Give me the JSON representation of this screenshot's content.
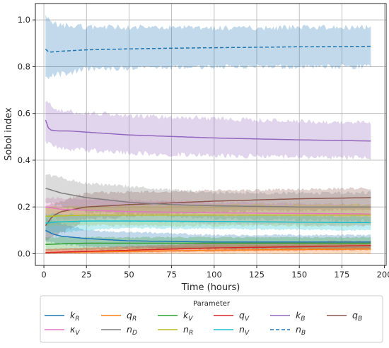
{
  "chart_data": {
    "type": "line",
    "title": "",
    "xlabel": "Time (hours)",
    "ylabel": "Sobol index",
    "xlim": [
      -5,
      201
    ],
    "ylim": [
      -0.05,
      1.07
    ],
    "xticks": [
      0,
      25,
      50,
      75,
      100,
      125,
      150,
      175,
      200
    ],
    "yticks": [
      0.0,
      0.2,
      0.4,
      0.6,
      0.8,
      1.0
    ],
    "ytick_labels": [
      "0.0",
      "0.2",
      "0.4",
      "0.6",
      "0.8",
      "1.0"
    ],
    "grid": true,
    "legend": {
      "title": "Parameter",
      "placement": "bottom",
      "ncol": 6
    },
    "x_range": [
      1,
      192
    ],
    "series": [
      {
        "name": "k_R",
        "label_main": "k",
        "label_sub": "R",
        "color": "#1f77b4",
        "dash": "solid",
        "points": [
          [
            1,
            0.1
          ],
          [
            5,
            0.085
          ],
          [
            10,
            0.075
          ],
          [
            25,
            0.065
          ],
          [
            50,
            0.055
          ],
          [
            100,
            0.05
          ],
          [
            150,
            0.05
          ],
          [
            192,
            0.05
          ]
        ],
        "band": [
          [
            1,
            0.05,
            0.15
          ],
          [
            25,
            0.03,
            0.1
          ],
          [
            100,
            0.02,
            0.08
          ],
          [
            192,
            0.02,
            0.08
          ]
        ]
      },
      {
        "name": "q_R",
        "label_main": "q",
        "label_sub": "R",
        "color": "#ff7f0e",
        "dash": "solid",
        "points": [
          [
            1,
            0.005
          ],
          [
            50,
            0.01
          ],
          [
            100,
            0.015
          ],
          [
            150,
            0.018
          ],
          [
            192,
            0.02
          ]
        ],
        "band": [
          [
            1,
            0.0,
            0.02
          ],
          [
            100,
            0.0,
            0.035
          ],
          [
            192,
            0.0,
            0.04
          ]
        ]
      },
      {
        "name": "k_V",
        "label_main": "k",
        "label_sub": "V",
        "color": "#2ca02c",
        "dash": "solid",
        "points": [
          [
            1,
            0.04
          ],
          [
            25,
            0.045
          ],
          [
            50,
            0.045
          ],
          [
            100,
            0.045
          ],
          [
            192,
            0.045
          ]
        ],
        "band": [
          [
            1,
            0.015,
            0.07
          ],
          [
            100,
            0.02,
            0.07
          ],
          [
            192,
            0.02,
            0.07
          ]
        ]
      },
      {
        "name": "q_V",
        "label_main": "q",
        "label_sub": "V",
        "color": "#d62728",
        "dash": "solid",
        "points": [
          [
            1,
            0.005
          ],
          [
            50,
            0.015
          ],
          [
            100,
            0.025
          ],
          [
            150,
            0.03
          ],
          [
            192,
            0.035
          ]
        ],
        "band": [
          [
            1,
            0.0,
            0.02
          ],
          [
            100,
            0.01,
            0.045
          ],
          [
            192,
            0.015,
            0.055
          ]
        ]
      },
      {
        "name": "k_B",
        "label_main": "k",
        "label_sub": "B",
        "color": "#9467bd",
        "dash": "solid",
        "points": [
          [
            1,
            0.572
          ],
          [
            3,
            0.53
          ],
          [
            8,
            0.525
          ],
          [
            15,
            0.525
          ],
          [
            25,
            0.52
          ],
          [
            50,
            0.508
          ],
          [
            100,
            0.495
          ],
          [
            150,
            0.487
          ],
          [
            192,
            0.482
          ]
        ],
        "band": [
          [
            1,
            0.48,
            0.65
          ],
          [
            10,
            0.45,
            0.61
          ],
          [
            50,
            0.43,
            0.59
          ],
          [
            100,
            0.42,
            0.58
          ],
          [
            150,
            0.415,
            0.565
          ],
          [
            192,
            0.41,
            0.56
          ]
        ]
      },
      {
        "name": "q_B",
        "label_main": "q",
        "label_sub": "B",
        "color": "#8c564b",
        "dash": "solid",
        "points": [
          [
            1,
            0.12
          ],
          [
            5,
            0.16
          ],
          [
            10,
            0.18
          ],
          [
            25,
            0.2
          ],
          [
            50,
            0.21
          ],
          [
            100,
            0.225
          ],
          [
            150,
            0.235
          ],
          [
            192,
            0.24
          ]
        ],
        "band": [
          [
            1,
            0.05,
            0.2
          ],
          [
            25,
            0.15,
            0.26
          ],
          [
            100,
            0.18,
            0.27
          ],
          [
            192,
            0.19,
            0.28
          ]
        ]
      },
      {
        "name": "κ_V",
        "label_main": "κ",
        "label_sub": "V",
        "color": "#e377c2",
        "dash": "solid",
        "points": [
          [
            1,
            0.2
          ],
          [
            10,
            0.19
          ],
          [
            50,
            0.18
          ],
          [
            100,
            0.175
          ],
          [
            192,
            0.17
          ]
        ],
        "band": [
          [
            1,
            0.15,
            0.24
          ],
          [
            100,
            0.13,
            0.22
          ],
          [
            192,
            0.12,
            0.21
          ]
        ]
      },
      {
        "name": "n_D",
        "label_main": "n",
        "label_sub": "D",
        "color": "#7f7f7f",
        "dash": "solid",
        "points": [
          [
            1,
            0.28
          ],
          [
            10,
            0.26
          ],
          [
            25,
            0.24
          ],
          [
            50,
            0.22
          ],
          [
            75,
            0.21
          ],
          [
            100,
            0.205
          ],
          [
            150,
            0.2
          ],
          [
            192,
            0.2
          ]
        ],
        "band": [
          [
            1,
            0.22,
            0.34
          ],
          [
            25,
            0.18,
            0.3
          ],
          [
            100,
            0.15,
            0.26
          ],
          [
            192,
            0.14,
            0.26
          ]
        ]
      },
      {
        "name": "n_R",
        "label_main": "n",
        "label_sub": "R",
        "color": "#bcbd22",
        "dash": "solid",
        "points": [
          [
            1,
            0.16
          ],
          [
            25,
            0.165
          ],
          [
            50,
            0.165
          ],
          [
            100,
            0.165
          ],
          [
            192,
            0.165
          ]
        ],
        "band": [
          [
            1,
            0.12,
            0.2
          ],
          [
            100,
            0.12,
            0.21
          ],
          [
            192,
            0.12,
            0.21
          ]
        ]
      },
      {
        "name": "n_V",
        "label_main": "n",
        "label_sub": "V",
        "color": "#17becf",
        "dash": "solid",
        "points": [
          [
            1,
            0.13
          ],
          [
            5,
            0.135
          ],
          [
            25,
            0.14
          ],
          [
            50,
            0.14
          ],
          [
            100,
            0.138
          ],
          [
            150,
            0.135
          ],
          [
            192,
            0.133
          ]
        ],
        "band": [
          [
            1,
            0.09,
            0.17
          ],
          [
            50,
            0.11,
            0.165
          ],
          [
            192,
            0.1,
            0.16
          ]
        ]
      },
      {
        "name": "n_B",
        "label_main": "n",
        "label_sub": "B",
        "color": "#1f77b4",
        "dash": "dashed",
        "points": [
          [
            1,
            0.875
          ],
          [
            3,
            0.862
          ],
          [
            10,
            0.866
          ],
          [
            25,
            0.872
          ],
          [
            50,
            0.876
          ],
          [
            75,
            0.879
          ],
          [
            100,
            0.881
          ],
          [
            125,
            0.883
          ],
          [
            150,
            0.885
          ],
          [
            175,
            0.886
          ],
          [
            192,
            0.887
          ]
        ],
        "band": [
          [
            1,
            0.74,
            1.01
          ],
          [
            5,
            0.76,
            0.98
          ],
          [
            25,
            0.79,
            0.97
          ],
          [
            100,
            0.8,
            0.965
          ],
          [
            192,
            0.8,
            0.97
          ]
        ]
      }
    ]
  }
}
